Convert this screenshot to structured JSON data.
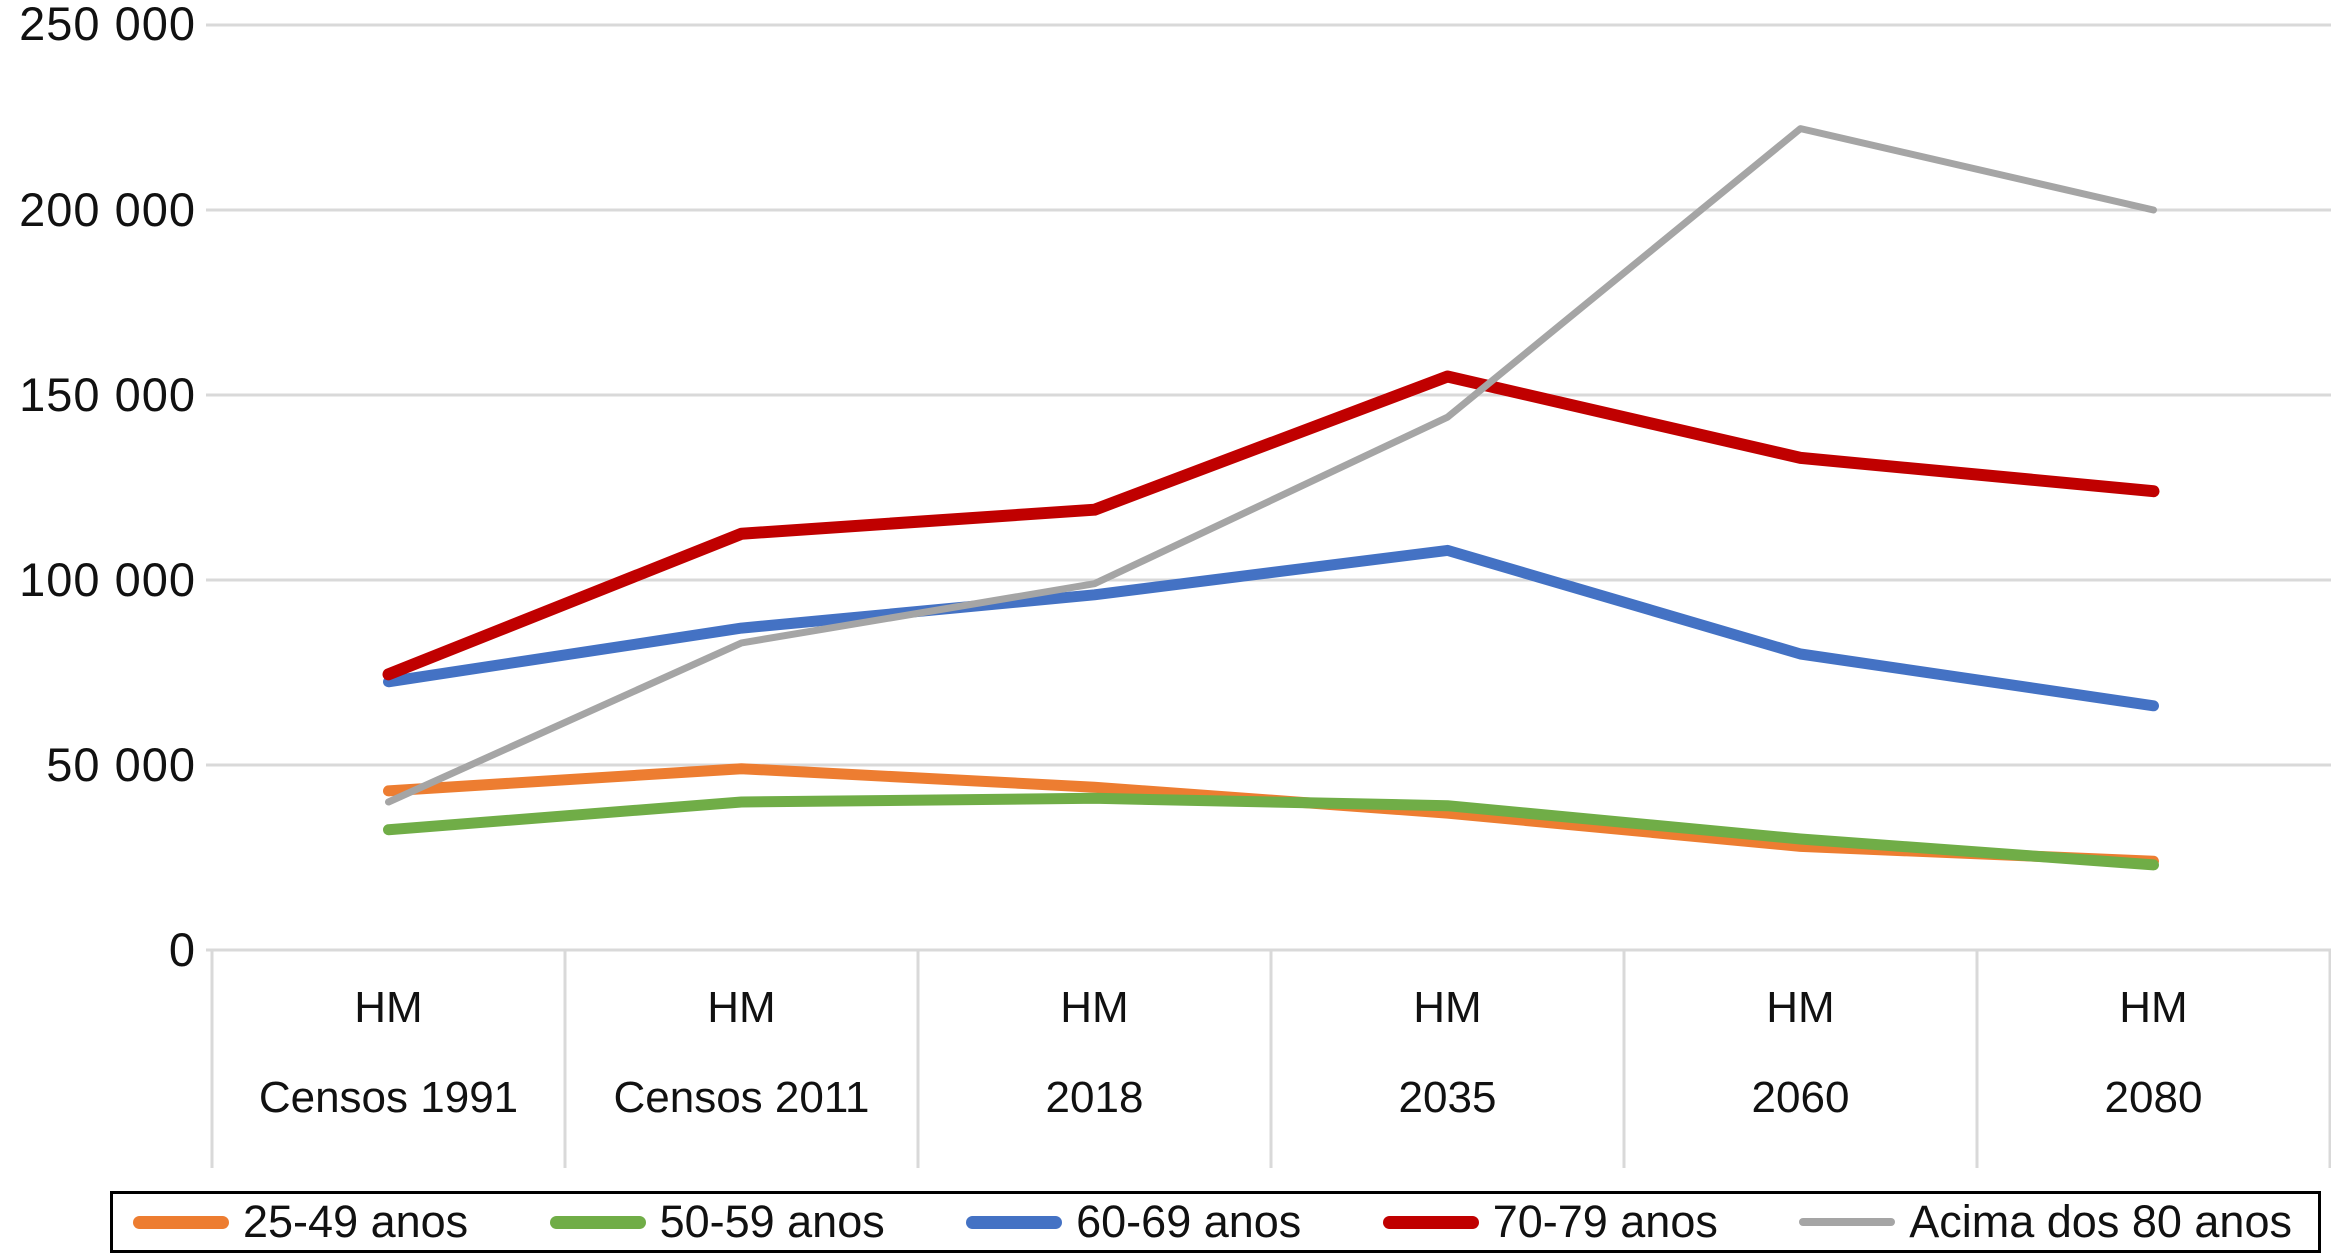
{
  "chart_data": {
    "type": "line",
    "title": "",
    "grid": true,
    "gridline_color": "#D9D9D9",
    "axis_text_color": "#111111",
    "legend_position": "bottom",
    "y_axis": {
      "min": 0,
      "max": 250000,
      "tick_step": 50000,
      "ticks": [
        {
          "label": "250 000",
          "value": 250000
        },
        {
          "label": "200 000",
          "value": 200000
        },
        {
          "label": "150 000",
          "value": 150000
        },
        {
          "label": "100 000",
          "value": 100000
        },
        {
          "label": "50 000",
          "value": 50000
        },
        {
          "label": "0",
          "value": 0
        }
      ]
    },
    "x_axis": {
      "categories": [
        {
          "line1": "HM",
          "line2": "Censos 1991"
        },
        {
          "line1": "HM",
          "line2": "Censos 2011"
        },
        {
          "line1": "HM",
          "line2": "2018"
        },
        {
          "line1": "HM",
          "line2": "2035"
        },
        {
          "line1": "HM",
          "line2": "2060"
        },
        {
          "line1": "HM",
          "line2": "2080"
        }
      ]
    },
    "series": [
      {
        "name": "25-49 anos",
        "color": "#ED7D31",
        "stroke_width": 11,
        "values": [
          43000,
          49000,
          44000,
          37000,
          28000,
          24000
        ]
      },
      {
        "name": "50-59 anos",
        "color": "#70AD47",
        "stroke_width": 11,
        "values": [
          32500,
          40000,
          41000,
          39000,
          30000,
          23000
        ]
      },
      {
        "name": "60-69 anos",
        "color": "#4472C4",
        "stroke_width": 11,
        "values": [
          72500,
          87000,
          96000,
          108000,
          80000,
          66000
        ]
      },
      {
        "name": "70-79 anos",
        "color": "#C00000",
        "stroke_width": 12,
        "values": [
          74500,
          112500,
          119000,
          155000,
          133000,
          124000
        ]
      },
      {
        "name": "Acima dos 80 anos",
        "color": "#A5A5A5",
        "stroke_width": 7,
        "values": [
          40000,
          83000,
          99000,
          144000,
          222000,
          200000
        ]
      }
    ]
  }
}
